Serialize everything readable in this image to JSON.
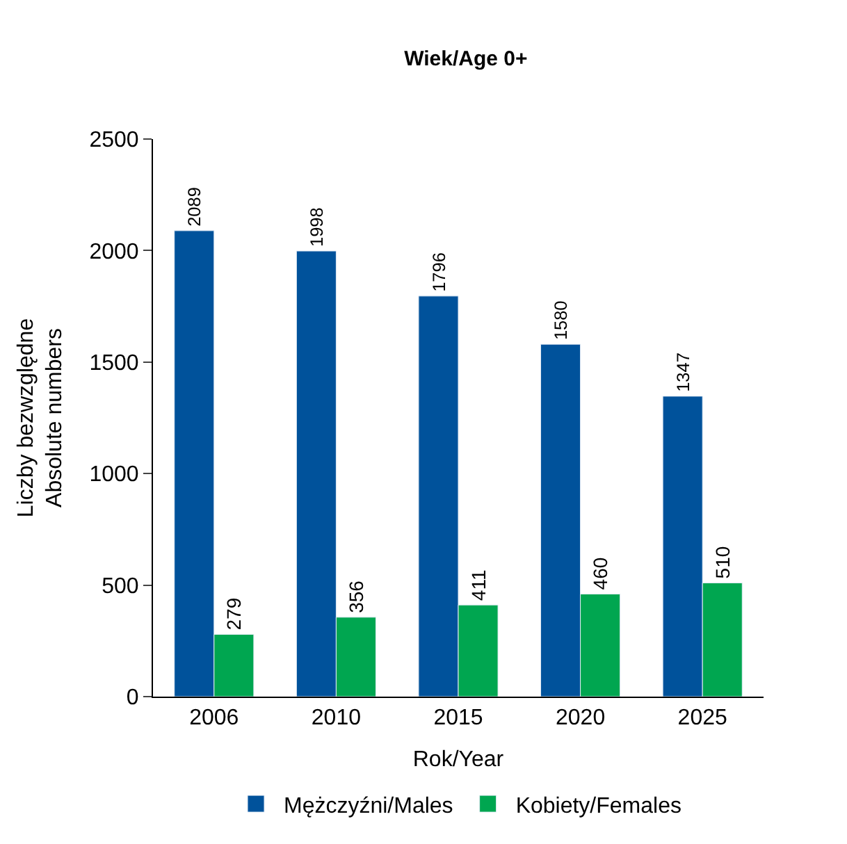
{
  "chart_data": {
    "type": "bar",
    "title": "Wiek/Age 0+",
    "xlabel": "Rok/Year",
    "ylabel": "Liczby bezwzględne\nAbsolute numbers",
    "categories": [
      "2006",
      "2010",
      "2015",
      "2020",
      "2025"
    ],
    "series": [
      {
        "name": "Mężczyźni/Males",
        "color": "#00529b",
        "values": [
          2089,
          1998,
          1796,
          1580,
          1347
        ]
      },
      {
        "name": "Kobiety/Females",
        "color": "#00a650",
        "values": [
          279,
          356,
          411,
          460,
          510
        ]
      }
    ],
    "ylim": [
      0,
      2500
    ],
    "yticks": [
      0,
      500,
      1000,
      1500,
      2000,
      2500
    ],
    "legend": "bottom",
    "data_labels": true
  }
}
